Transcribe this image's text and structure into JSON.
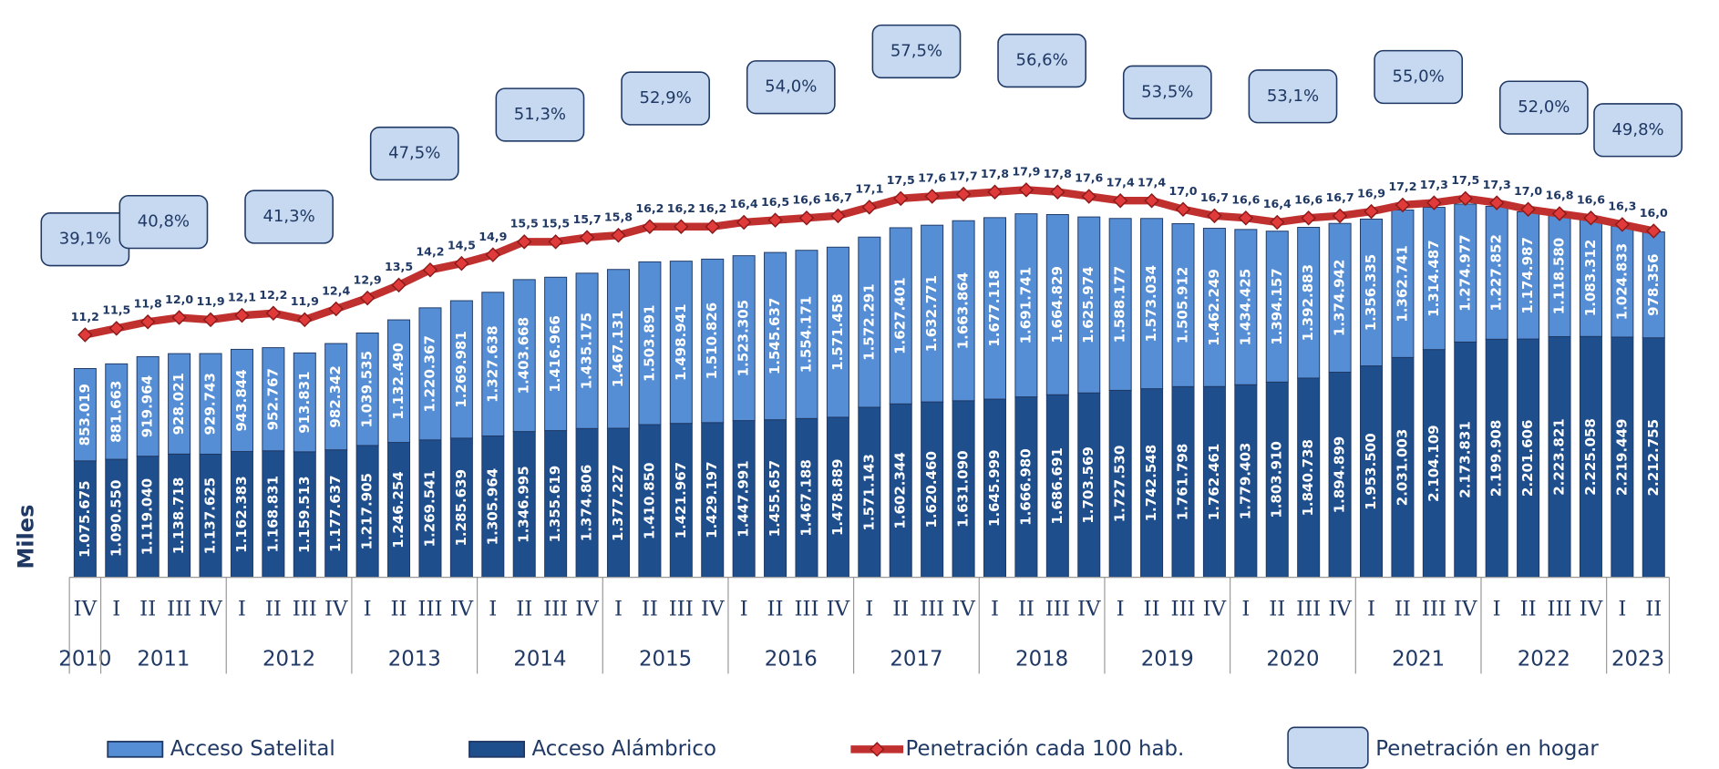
{
  "chart_data": {
    "type": "bar",
    "y_label": "Miles",
    "categories": [
      "IV",
      "I",
      "II",
      "III",
      "IV",
      "I",
      "II",
      "III",
      "IV",
      "I",
      "II",
      "III",
      "IV",
      "I",
      "II",
      "III",
      "IV",
      "I",
      "II",
      "III",
      "IV",
      "I",
      "II",
      "III",
      "IV",
      "I",
      "II",
      "III",
      "IV",
      "I",
      "II",
      "III",
      "IV",
      "I",
      "II",
      "III",
      "IV",
      "I",
      "II",
      "III",
      "IV",
      "I",
      "II",
      "III",
      "IV",
      "I",
      "II",
      "III",
      "IV",
      "I",
      "II"
    ],
    "years": [
      "2010",
      "2011",
      "2012",
      "2013",
      "2014",
      "2015",
      "2016",
      "2017",
      "2018",
      "2019",
      "2020",
      "2021",
      "2022",
      "2023"
    ],
    "ylim": [
      0,
      5000000
    ],
    "y2lim": [
      0,
      25
    ],
    "y3lim": [
      6,
      59
    ],
    "series": [
      {
        "name": "Acceso Satelital",
        "color": "#558ed5",
        "values": [
          853019,
          881663,
          919964,
          928021,
          929743,
          943844,
          952767,
          913831,
          982342,
          1039535,
          1132490,
          1220367,
          1269981,
          1327638,
          1403668,
          1416966,
          1435175,
          1467131,
          1503891,
          1498941,
          1510826,
          1523305,
          1545637,
          1554171,
          1571458,
          1572291,
          1627401,
          1632771,
          1663864,
          1677118,
          1691741,
          1664829,
          1625974,
          1588177,
          1573034,
          1505912,
          1462249,
          1434425,
          1394157,
          1392883,
          1374942,
          1356335,
          1362741,
          1314487,
          1274977,
          1227852,
          1174987,
          1118580,
          1083312,
          1024833,
          978356
        ],
        "value_labels": [
          "853.019",
          "881.663",
          "919.964",
          "928.021",
          "929.743",
          "943.844",
          "952.767",
          "913.831",
          "982.342",
          "1.039.535",
          "1.132.490",
          "1.220.367",
          "1.269.981",
          "1.327.638",
          "1.403.668",
          "1.416.966",
          "1.435.175",
          "1.467.131",
          "1.503.891",
          "1.498.941",
          "1.510.826",
          "1.523.305",
          "1.545.637",
          "1.554.171",
          "1.571.458",
          "1.572.291",
          "1.627.401",
          "1.632.771",
          "1.663.864",
          "1.677.118",
          "1.691.741",
          "1.664.829",
          "1.625.974",
          "1.588.177",
          "1.573.034",
          "1.505.912",
          "1.462.249",
          "1.434.425",
          "1.394.157",
          "1.392.883",
          "1.374.942",
          "1.356.335",
          "1.362.741",
          "1.314.487",
          "1.274.977",
          "1.227.852",
          "1.174.987",
          "1.118.580",
          "1.083.312",
          "1.024.833",
          "978.356"
        ]
      },
      {
        "name": "Acceso Alámbrico",
        "color": "#1f4e8c",
        "values": [
          1075675,
          1090550,
          1119040,
          1138718,
          1137625,
          1162383,
          1168831,
          1159513,
          1177637,
          1217905,
          1246254,
          1269541,
          1285639,
          1305964,
          1346995,
          1355619,
          1374806,
          1377227,
          1410850,
          1421967,
          1429197,
          1447991,
          1455657,
          1467188,
          1478889,
          1571143,
          1602344,
          1620460,
          1631090,
          1645999,
          1666980,
          1686691,
          1703569,
          1727530,
          1742548,
          1761798,
          1762461,
          1779403,
          1803910,
          1840738,
          1894899,
          1953500,
          2031003,
          2104109,
          2173831,
          2199908,
          2201606,
          2223821,
          2225058,
          2219449,
          2212755
        ],
        "value_labels": [
          "1.075.675",
          "1.090.550",
          "1.119.040",
          "1.138.718",
          "1.137.625",
          "1.162.383",
          "1.168.831",
          "1.159.513",
          "1.177.637",
          "1.217.905",
          "1.246.254",
          "1.269.541",
          "1.285.639",
          "1.305.964",
          "1.346.995",
          "1.355.619",
          "1.374.806",
          "1.377.227",
          "1.410.850",
          "1.421.967",
          "1.429.197",
          "1.447.991",
          "1.455.657",
          "1.467.188",
          "1.478.889",
          "1.571.143",
          "1.602.344",
          "1.620.460",
          "1.631.090",
          "1.645.999",
          "1.666.980",
          "1.686.691",
          "1.703.569",
          "1.727.530",
          "1.742.548",
          "1.761.798",
          "1.762.461",
          "1.779.403",
          "1.803.910",
          "1.840.738",
          "1.894.899",
          "1.953.500",
          "2.031.003",
          "2.104.109",
          "2.173.831",
          "2.199.908",
          "2.201.606",
          "2.223.821",
          "2.225.058",
          "2.219.449",
          "2.212.755"
        ]
      },
      {
        "name": "Penetración cada 100 hab.",
        "color": "#c0302f",
        "type": "line",
        "axis": "y2",
        "values": [
          11.2,
          11.5,
          11.8,
          12.0,
          11.9,
          12.1,
          12.2,
          11.9,
          12.4,
          12.9,
          13.5,
          14.2,
          14.5,
          14.9,
          15.5,
          15.5,
          15.7,
          15.8,
          16.2,
          16.2,
          16.2,
          16.4,
          16.5,
          16.6,
          16.7,
          17.1,
          17.5,
          17.6,
          17.7,
          17.8,
          17.9,
          17.8,
          17.6,
          17.4,
          17.4,
          17.0,
          16.7,
          16.6,
          16.4,
          16.6,
          16.7,
          16.9,
          17.2,
          17.3,
          17.5,
          17.3,
          17.0,
          16.8,
          16.6,
          16.3,
          16.0
        ],
        "value_labels": [
          "11,2",
          "11,5",
          "11,8",
          "12,0",
          "11,9",
          "12,1",
          "12,2",
          "11,9",
          "12,4",
          "12,9",
          "13,5",
          "14,2",
          "14,5",
          "14,9",
          "15,5",
          "15,5",
          "15,7",
          "15,8",
          "16,2",
          "16,2",
          "16,2",
          "16,4",
          "16,5",
          "16,6",
          "16,7",
          "17,1",
          "17,5",
          "17,6",
          "17,7",
          "17,8",
          "17,9",
          "17,8",
          "17,6",
          "17,4",
          "17,4",
          "17,0",
          "16,7",
          "16,6",
          "16,4",
          "16,6",
          "16,7",
          "16,9",
          "17,2",
          "17,3",
          "17,5",
          "17,3",
          "17,0",
          "16,8",
          "16,6",
          "16,3",
          "16,0"
        ]
      }
    ],
    "hogar": {
      "name": "Penetración en hogar",
      "color": "#c6d9f1",
      "axis": "y3",
      "values": [
        39.1,
        40.8,
        41.3,
        47.5,
        51.3,
        52.9,
        54.0,
        57.5,
        56.6,
        53.5,
        53.1,
        55.0,
        52.0,
        49.8
      ],
      "value_labels": [
        "39,1%",
        "40,8%",
        "41,3%",
        "47,5%",
        "51,3%",
        "52,9%",
        "54,0%",
        "57,5%",
        "56,6%",
        "53,5%",
        "53,1%",
        "55,0%",
        "52,0%",
        "49,8%"
      ]
    }
  }
}
